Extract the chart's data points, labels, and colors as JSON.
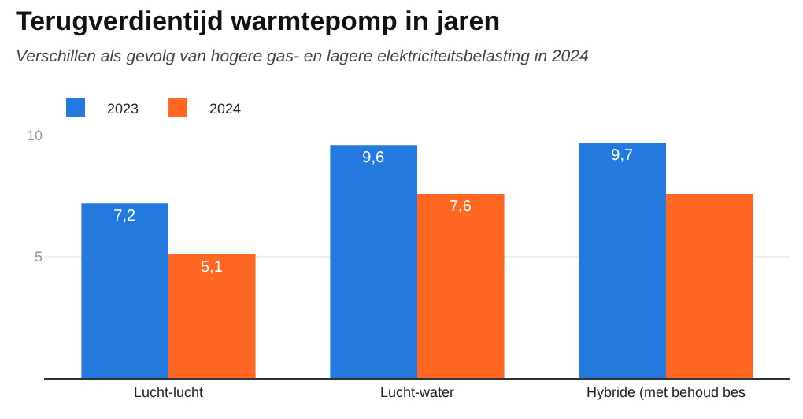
{
  "chart_data": {
    "type": "bar",
    "title": "Terugverdientijd warmtepomp in jaren",
    "subtitle": "Verschillen als gevolg van hogere gas- en lagere elektriciteitsbelasting in 2024",
    "categories": [
      "Lucht-lucht",
      "Lucht-water",
      "Hybride (met behoud bes"
    ],
    "series": [
      {
        "name": "2023",
        "color": "#2379dd",
        "values": [
          7.2,
          9.6,
          9.7
        ],
        "value_labels": [
          "7,2",
          "9,6",
          "9,7"
        ]
      },
      {
        "name": "2024",
        "color": "#ff6723",
        "values": [
          5.1,
          7.6,
          7.6
        ],
        "value_labels": [
          "5,1",
          "7,6",
          null
        ]
      }
    ],
    "ylim": [
      0,
      10
    ],
    "yticks": [
      {
        "value": 0,
        "label": null
      },
      5,
      10
    ],
    "grid": "y",
    "legend": "top left"
  }
}
